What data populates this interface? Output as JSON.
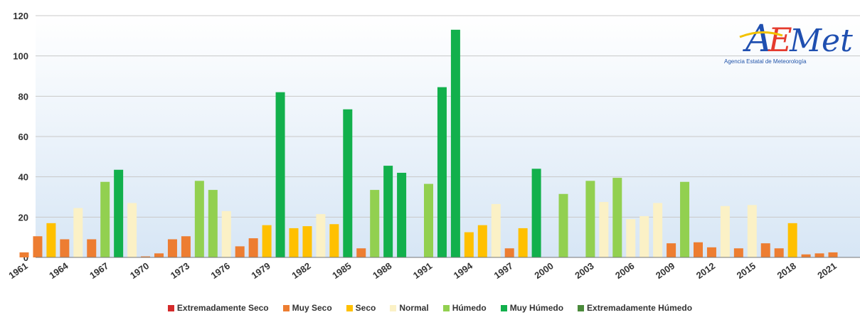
{
  "chart_data": {
    "type": "bar",
    "title": "",
    "xlabel": "",
    "ylabel": "",
    "ylim": [
      0,
      120
    ],
    "y_ticks": [
      0,
      20,
      40,
      60,
      80,
      100,
      120
    ],
    "grid": true,
    "legend_position": "bottom",
    "x_tick_labels": [
      "1961",
      "1964",
      "1967",
      "1970",
      "1973",
      "1976",
      "1979",
      "1982",
      "1985",
      "1988",
      "1991",
      "1994",
      "1997",
      "2000",
      "2003",
      "2006",
      "2009",
      "2012",
      "2015",
      "2018",
      "2021"
    ],
    "categories": [
      {
        "label": "Extremadamente Seco",
        "color": "#d42a2a"
      },
      {
        "label": "Muy Seco",
        "color": "#ed7d31"
      },
      {
        "label": "Seco",
        "color": "#ffc000"
      },
      {
        "label": "Normal",
        "color": "#fbf1c6"
      },
      {
        "label": "Húmedo",
        "color": "#92d050"
      },
      {
        "label": "Muy Húmedo",
        "color": "#12b04c"
      },
      {
        "label": "Extremadamente Húmedo",
        "color": "#4a8a3a"
      }
    ],
    "bars": [
      {
        "year": 1961,
        "value": 2.5,
        "category": "Muy Seco"
      },
      {
        "year": 1962,
        "value": 10.5,
        "category": "Muy Seco"
      },
      {
        "year": 1963,
        "value": 17,
        "category": "Seco"
      },
      {
        "year": 1964,
        "value": 9,
        "category": "Muy Seco"
      },
      {
        "year": 1965,
        "value": 24.5,
        "category": "Normal"
      },
      {
        "year": 1966,
        "value": 9,
        "category": "Muy Seco"
      },
      {
        "year": 1967,
        "value": 37.5,
        "category": "Húmedo"
      },
      {
        "year": 1968,
        "value": 43.5,
        "category": "Muy Húmedo"
      },
      {
        "year": 1969,
        "value": 27,
        "category": "Normal"
      },
      {
        "year": 1970,
        "value": 0.5,
        "category": "Muy Seco"
      },
      {
        "year": 1971,
        "value": 2,
        "category": "Muy Seco"
      },
      {
        "year": 1972,
        "value": 9,
        "category": "Muy Seco"
      },
      {
        "year": 1973,
        "value": 10.5,
        "category": "Muy Seco"
      },
      {
        "year": 1974,
        "value": 38,
        "category": "Húmedo"
      },
      {
        "year": 1975,
        "value": 33.5,
        "category": "Húmedo"
      },
      {
        "year": 1976,
        "value": 23,
        "category": "Normal"
      },
      {
        "year": 1977,
        "value": 5.5,
        "category": "Muy Seco"
      },
      {
        "year": 1978,
        "value": 9.5,
        "category": "Muy Seco"
      },
      {
        "year": 1979,
        "value": 16,
        "category": "Seco"
      },
      {
        "year": 1980,
        "value": 82,
        "category": "Muy Húmedo"
      },
      {
        "year": 1981,
        "value": 14.5,
        "category": "Seco"
      },
      {
        "year": 1982,
        "value": 15.5,
        "category": "Seco"
      },
      {
        "year": 1983,
        "value": 21.5,
        "category": "Normal"
      },
      {
        "year": 1984,
        "value": 16.5,
        "category": "Seco"
      },
      {
        "year": 1985,
        "value": 73.5,
        "category": "Muy Húmedo"
      },
      {
        "year": 1986,
        "value": 4.5,
        "category": "Muy Seco"
      },
      {
        "year": 1987,
        "value": 33.5,
        "category": "Húmedo"
      },
      {
        "year": 1988,
        "value": 45.5,
        "category": "Muy Húmedo"
      },
      {
        "year": 1989,
        "value": 42,
        "category": "Muy Húmedo"
      },
      {
        "year": 1990,
        "value": 0,
        "category": "Normal"
      },
      {
        "year": 1991,
        "value": 36.5,
        "category": "Húmedo"
      },
      {
        "year": 1992,
        "value": 84.5,
        "category": "Muy Húmedo"
      },
      {
        "year": 1993,
        "value": 113,
        "category": "Muy Húmedo"
      },
      {
        "year": 1994,
        "value": 12.5,
        "category": "Seco"
      },
      {
        "year": 1995,
        "value": 16,
        "category": "Seco"
      },
      {
        "year": 1996,
        "value": 26.5,
        "category": "Normal"
      },
      {
        "year": 1997,
        "value": 4.5,
        "category": "Muy Seco"
      },
      {
        "year": 1998,
        "value": 14.5,
        "category": "Seco"
      },
      {
        "year": 1999,
        "value": 44,
        "category": "Muy Húmedo"
      },
      {
        "year": 2000,
        "value": 0,
        "category": "Normal"
      },
      {
        "year": 2001,
        "value": 31.5,
        "category": "Húmedo"
      },
      {
        "year": 2002,
        "value": 0,
        "category": "Normal"
      },
      {
        "year": 2003,
        "value": 38,
        "category": "Húmedo"
      },
      {
        "year": 2004,
        "value": 27.5,
        "category": "Normal"
      },
      {
        "year": 2005,
        "value": 39.5,
        "category": "Húmedo"
      },
      {
        "year": 2006,
        "value": 19,
        "category": "Normal"
      },
      {
        "year": 2007,
        "value": 20.5,
        "category": "Normal"
      },
      {
        "year": 2008,
        "value": 27,
        "category": "Normal"
      },
      {
        "year": 2009,
        "value": 7,
        "category": "Muy Seco"
      },
      {
        "year": 2010,
        "value": 37.5,
        "category": "Húmedo"
      },
      {
        "year": 2011,
        "value": 7.5,
        "category": "Muy Seco"
      },
      {
        "year": 2012,
        "value": 5,
        "category": "Muy Seco"
      },
      {
        "year": 2013,
        "value": 25.5,
        "category": "Normal"
      },
      {
        "year": 2014,
        "value": 4.5,
        "category": "Muy Seco"
      },
      {
        "year": 2015,
        "value": 26,
        "category": "Normal"
      },
      {
        "year": 2016,
        "value": 7,
        "category": "Muy Seco"
      },
      {
        "year": 2017,
        "value": 4.5,
        "category": "Muy Seco"
      },
      {
        "year": 2018,
        "value": 17,
        "category": "Seco"
      },
      {
        "year": 2019,
        "value": 1.5,
        "category": "Muy Seco"
      },
      {
        "year": 2020,
        "value": 2,
        "category": "Muy Seco"
      },
      {
        "year": 2021,
        "value": 2.5,
        "category": "Muy Seco"
      }
    ]
  },
  "logo": {
    "text": "AEMet",
    "subtitle": "Agencia Estatal de Meteorología"
  }
}
